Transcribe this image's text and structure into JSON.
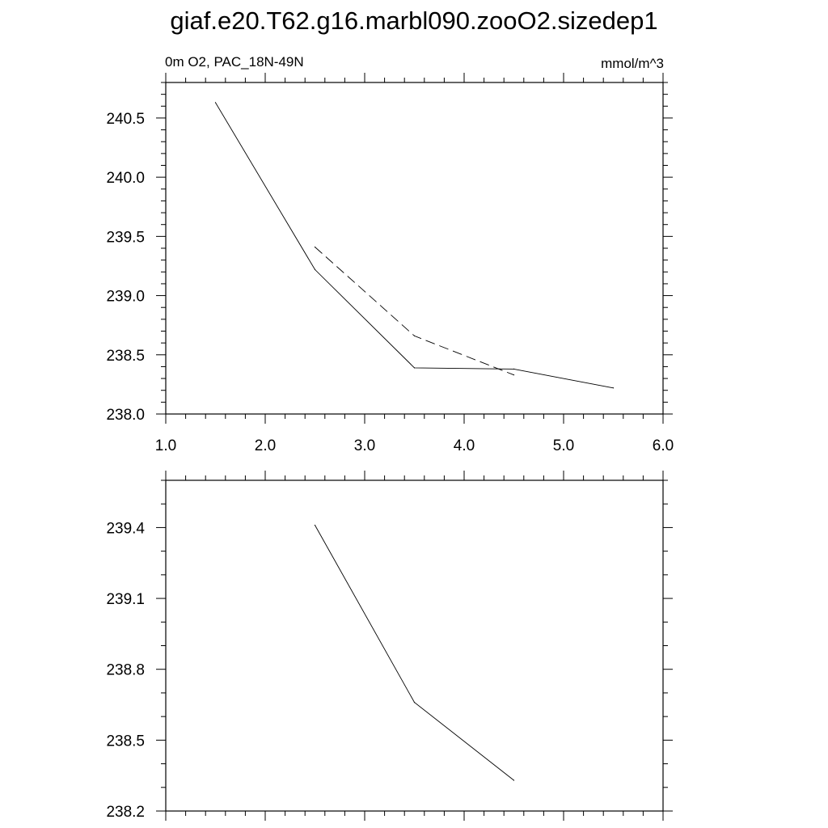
{
  "title": "giaf.e20.T62.g16.marbl090.zooO2.sizedep1",
  "left_label": "0m O2, PAC_18N-49N",
  "right_label": "mmol/m^3",
  "chart_data": [
    {
      "type": "line",
      "xlim": [
        1.0,
        6.0
      ],
      "ylim": [
        238.0,
        240.8
      ],
      "x_ticks": [
        "1.0",
        "2.0",
        "3.0",
        "4.0",
        "5.0",
        "6.0"
      ],
      "y_ticks": [
        "238.0",
        "238.5",
        "239.0",
        "239.5",
        "240.0",
        "240.5"
      ],
      "series": [
        {
          "style": "solid",
          "x": [
            1.5,
            2.5,
            3.5,
            4.5,
            5.5
          ],
          "y": [
            240.63,
            239.22,
            238.39,
            238.38,
            238.22
          ]
        },
        {
          "style": "dashed",
          "x": [
            2.5,
            3.5,
            4.5
          ],
          "y": [
            239.41,
            238.66,
            238.33
          ]
        }
      ]
    },
    {
      "type": "line",
      "xlim": [
        1.0,
        6.0
      ],
      "ylim": [
        238.2,
        239.6
      ],
      "y_ticks": [
        "238.2",
        "238.5",
        "238.8",
        "239.1",
        "239.4"
      ],
      "series": [
        {
          "style": "solid",
          "x": [
            2.5,
            3.5,
            4.5
          ],
          "y": [
            239.41,
            238.66,
            238.33
          ]
        }
      ]
    }
  ]
}
